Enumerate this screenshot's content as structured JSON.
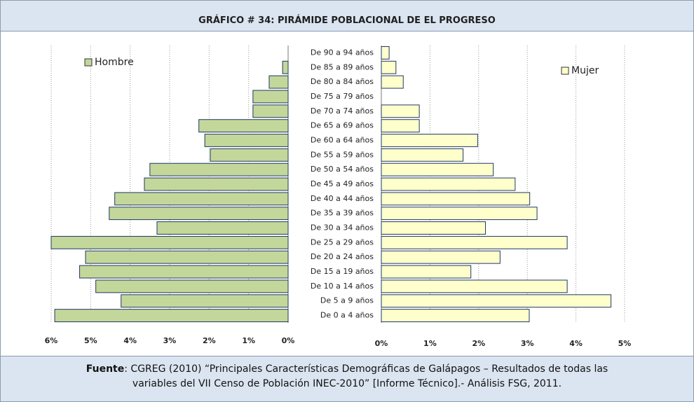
{
  "chart_data": {
    "type": "pyramid",
    "title": "GRÁFICO # 34: PIRÁMIDE POBLACIONAL DE EL PROGRESO",
    "categories": [
      "De 90 a 94 años",
      "De 85 a 89 años",
      "De 80 a 84 años",
      "De 75 a 79 años",
      "De 70 a 74 años",
      "De 65 a 69 años",
      "De 60 a 64 años",
      "De 55 a 59 años",
      "De 50 a 54 años",
      "De 45 a 49 años",
      "De 40 a 44 años",
      "De 35 a 39 años",
      "De 30 a 34 años",
      "De 25 a 29 años",
      "De 20 a 24 años",
      "De 15 a 19 años",
      "De 10 a 14 años",
      "De 5 a 9 años",
      "De 0 a 4 años"
    ],
    "series": [
      {
        "name": "Hombre",
        "color": "#c4d79b",
        "values": [
          0,
          0.14,
          0.48,
          0.89,
          0.89,
          2.26,
          2.11,
          1.97,
          3.5,
          3.64,
          4.39,
          4.53,
          3.32,
          6.0,
          5.13,
          5.28,
          4.87,
          4.23,
          5.91
        ],
        "xlim": [
          0,
          6
        ],
        "xticks": [
          {
            "value": 0,
            "label": "0%"
          },
          {
            "value": 1,
            "label": "1%"
          },
          {
            "value": 2,
            "label": "2%"
          },
          {
            "value": 3,
            "label": "3%"
          },
          {
            "value": 4,
            "label": "4%"
          },
          {
            "value": 5,
            "label": "5%"
          },
          {
            "value": 6,
            "label": "6%"
          }
        ]
      },
      {
        "name": "Mujer",
        "color": "#ffffcc",
        "values": [
          0.16,
          0.3,
          0.45,
          0,
          0.78,
          0.78,
          1.98,
          1.68,
          2.3,
          2.75,
          3.05,
          3.2,
          2.14,
          3.82,
          2.44,
          1.84,
          3.82,
          4.72,
          3.04
        ],
        "xlim": [
          0,
          5
        ],
        "xticks": [
          {
            "value": 0,
            "label": "0%"
          },
          {
            "value": 1,
            "label": "1%"
          },
          {
            "value": 2,
            "label": "2%"
          },
          {
            "value": 3,
            "label": "3%"
          },
          {
            "value": 4,
            "label": "4%"
          },
          {
            "value": 5,
            "label": "5%"
          }
        ]
      }
    ],
    "grid": true
  },
  "footer": {
    "label": "Fuente",
    "line1": ": CGREG (2010) “Principales Características Demográficas de Galápagos – Resultados de todas las",
    "line2": "variables del VII Censo de Población INEC-2010” [Informe Técnico].- Análisis FSG, 2011."
  }
}
